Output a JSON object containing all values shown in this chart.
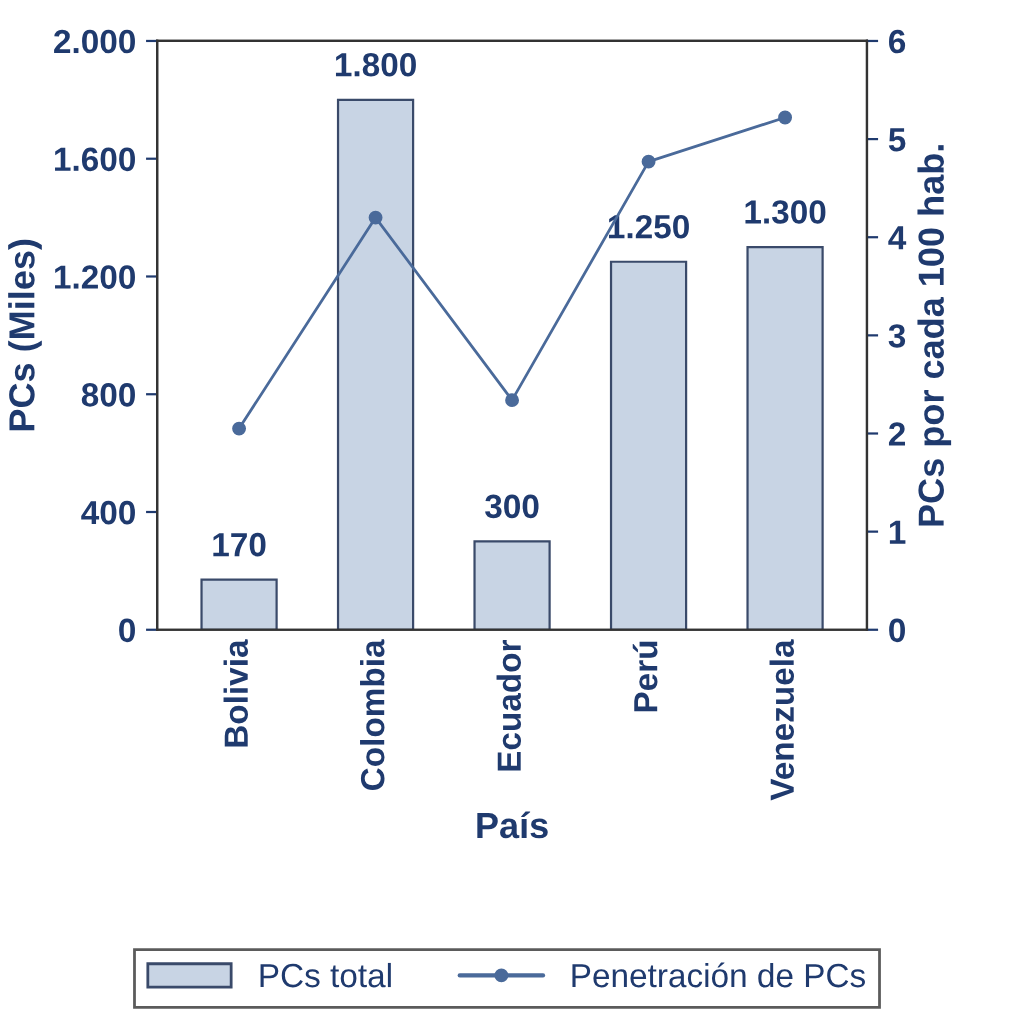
{
  "chart_data": {
    "type": "bar",
    "categories": [
      "Bolivia",
      "Colombia",
      "Ecuador",
      "Perú",
      "Venezuela"
    ],
    "xlabel": "País",
    "ylabel": "PCs (Miles)",
    "y2label": "PCs por cada 100 hab.",
    "series": [
      {
        "name": "PCs total",
        "color": "#c8d4e4",
        "values": [
          170,
          1800,
          300,
          1250,
          1300
        ],
        "value_labels": [
          "170",
          "1.800",
          "300",
          "1.250",
          "1.300"
        ]
      },
      {
        "name": "Penetración de PCs",
        "type": "line",
        "axis": "y2",
        "color": "#4a6a9a",
        "marker": "circle",
        "values": [
          2.05,
          4.2,
          2.34,
          4.77,
          5.22
        ]
      }
    ],
    "ylim": [
      0,
      2000
    ],
    "yticks": [
      {
        "value": 0,
        "label": "0"
      },
      {
        "value": 400,
        "label": "400"
      },
      {
        "value": 800,
        "label": "800"
      },
      {
        "value": 1200,
        "label": "1.200"
      },
      {
        "value": 1600,
        "label": "1.600"
      },
      {
        "value": 2000,
        "label": "2.000"
      }
    ],
    "y2lim": [
      0,
      6
    ],
    "y2ticks": [
      0,
      1,
      2,
      3,
      4,
      5,
      6
    ],
    "grid": false,
    "legend": "bottom"
  }
}
